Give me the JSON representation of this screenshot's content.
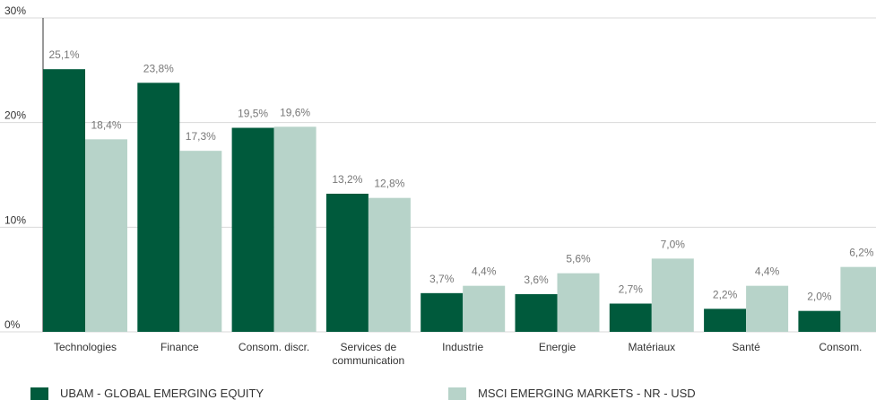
{
  "chart_data": {
    "type": "bar",
    "categories": [
      "Technologies",
      "Finance",
      "Consom. discr.",
      "Services de communication",
      "Industrie",
      "Energie",
      "Matériaux",
      "Santé",
      "Consom."
    ],
    "series": [
      {
        "name": "UBAM - GLOBAL EMERGING EQUITY",
        "color": "#005a3c",
        "values": [
          25.1,
          23.8,
          19.5,
          13.2,
          3.7,
          3.6,
          2.7,
          2.2,
          2.0
        ],
        "value_labels": [
          "25,1%",
          "23,8%",
          "19,5%",
          "13,2%",
          "3,7%",
          "3,6%",
          "2,7%",
          "2,2%",
          "2,0%"
        ]
      },
      {
        "name": "MSCI EMERGING MARKETS - NR - USD",
        "color": "#b7d3c9",
        "values": [
          18.4,
          17.3,
          19.6,
          12.8,
          4.4,
          5.6,
          7.0,
          4.4,
          6.2
        ],
        "value_labels": [
          "18,4%",
          "17,3%",
          "19,6%",
          "12,8%",
          "4,4%",
          "5,6%",
          "7,0%",
          "4,4%",
          "6,2%"
        ]
      }
    ],
    "ylim": [
      0,
      30
    ],
    "yticks": [
      {
        "value": 0,
        "label": "0%"
      },
      {
        "value": 10,
        "label": "10%"
      },
      {
        "value": 20,
        "label": "20%"
      },
      {
        "value": 30,
        "label": "30%"
      }
    ],
    "grid": true
  }
}
